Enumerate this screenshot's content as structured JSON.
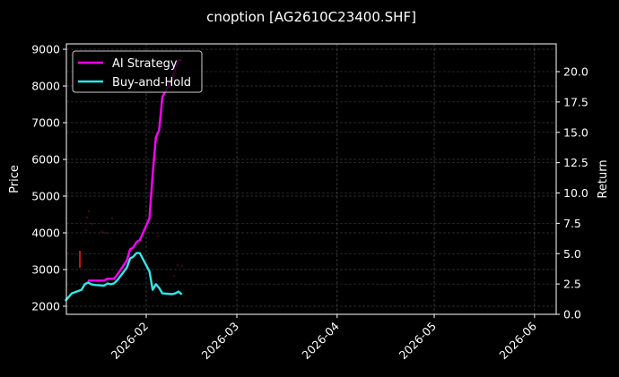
{
  "chart_data": {
    "type": "line",
    "title": "cnoption [AG2610C23400.SHF]",
    "xlabel": "",
    "ylabel": "Price",
    "ylabel_right": "Return",
    "x_ticks": [
      "2026-02",
      "2026-03",
      "2026-04",
      "2026-05",
      "2026-06"
    ],
    "y_ticks_left": [
      2000,
      3000,
      4000,
      5000,
      6000,
      7000,
      8000,
      9000
    ],
    "y_ticks_right": [
      "0.0",
      "2.5",
      "5.0",
      "7.5",
      "10.0",
      "12.5",
      "15.0",
      "17.5",
      "20.0"
    ],
    "ylim_left": [
      1800,
      9100
    ],
    "ylim_right": [
      0,
      22
    ],
    "grid": true,
    "legend_position": "upper left",
    "legend": [
      "AI Strategy",
      "Buy-and-Hold"
    ],
    "series": [
      {
        "name": "AI Strategy",
        "color": "#ff00ff",
        "axis": "left",
        "x": [
          "2026-01-14",
          "2026-01-16",
          "2026-01-19",
          "2026-01-20",
          "2026-01-21",
          "2026-01-22",
          "2026-01-23",
          "2026-01-26",
          "2026-01-27",
          "2026-01-28",
          "2026-01-29",
          "2026-01-30",
          "2026-02-02",
          "2026-02-03",
          "2026-02-04",
          "2026-02-05",
          "2026-02-06",
          "2026-02-09",
          "2026-02-10",
          "2026-02-11",
          "2026-02-12"
        ],
        "values": [
          2700,
          2700,
          2700,
          2750,
          2750,
          2750,
          2850,
          3250,
          3550,
          3600,
          3750,
          3800,
          4400,
          5600,
          6600,
          6800,
          7700,
          8200,
          8500,
          8700,
          8700
        ]
      },
      {
        "name": "Buy-and-Hold",
        "color": "#33e6e6",
        "axis": "left",
        "x": [
          "2026-01-07",
          "2026-01-08",
          "2026-01-09",
          "2026-01-12",
          "2026-01-13",
          "2026-01-14",
          "2026-01-15",
          "2026-01-16",
          "2026-01-19",
          "2026-01-20",
          "2026-01-21",
          "2026-01-22",
          "2026-01-23",
          "2026-01-26",
          "2026-01-27",
          "2026-01-28",
          "2026-01-29",
          "2026-01-30",
          "2026-02-02",
          "2026-02-03",
          "2026-02-04",
          "2026-02-05",
          "2026-02-06",
          "2026-02-09",
          "2026-02-10",
          "2026-02-11",
          "2026-02-12"
        ],
        "values": [
          2150,
          2250,
          2350,
          2450,
          2600,
          2650,
          2600,
          2580,
          2560,
          2620,
          2600,
          2620,
          2700,
          3050,
          3300,
          3350,
          3450,
          3450,
          2950,
          2450,
          2600,
          2500,
          2350,
          2330,
          2350,
          2400,
          2320
        ]
      }
    ]
  }
}
